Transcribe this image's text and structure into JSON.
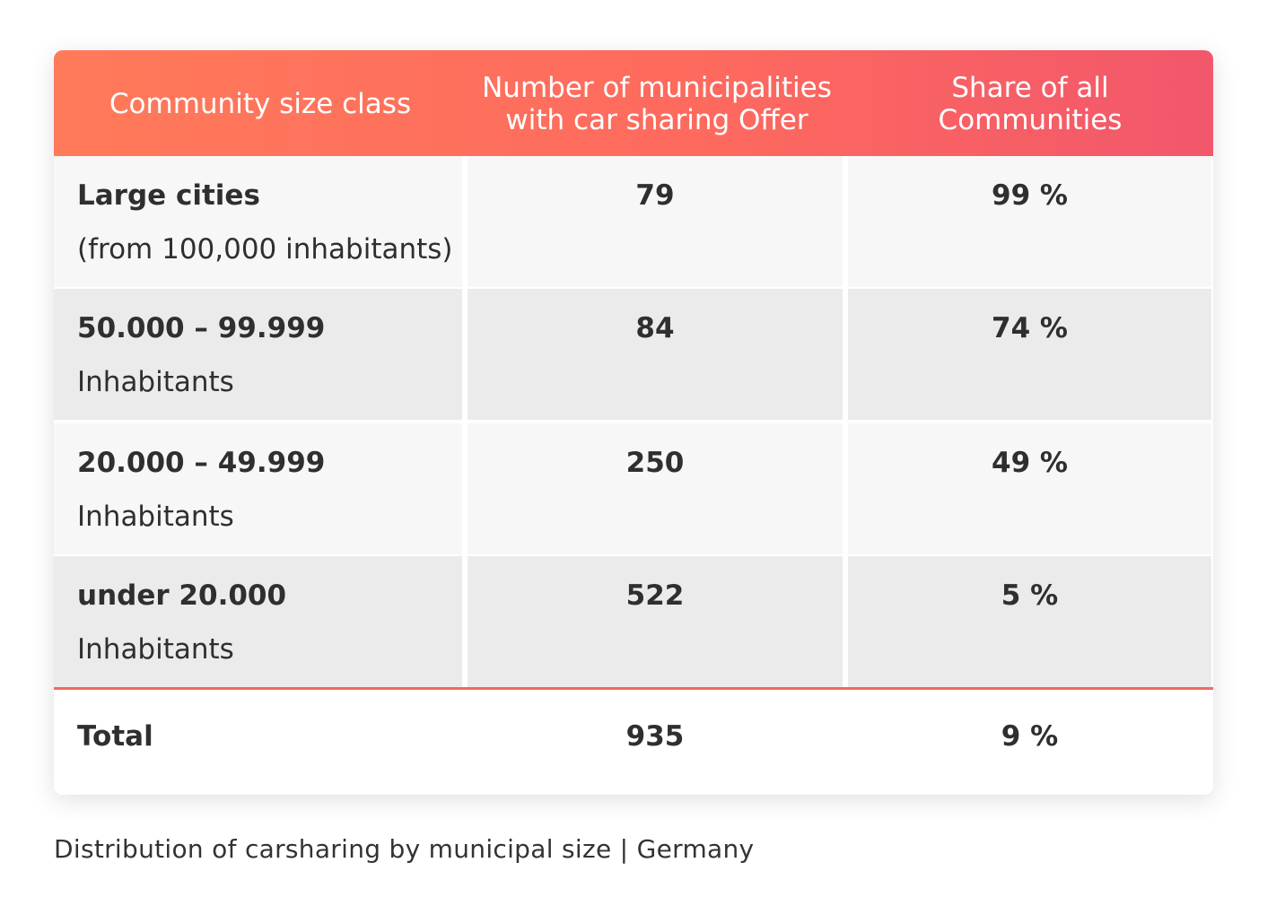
{
  "chart_data": {
    "type": "table",
    "columns": [
      "Community size class",
      "Number of municipalities with car sharing Offer",
      "Share of all Communities"
    ],
    "header_lines": [
      [
        "Community size class"
      ],
      [
        "Number of municipalities",
        "with car sharing Offer"
      ],
      [
        "Share of all",
        "Communities"
      ]
    ],
    "rows": [
      {
        "class": "Large cities",
        "class_note": "(from 100,000 inhabitants)",
        "municipalities": "79",
        "share": "99 %"
      },
      {
        "class": "50.000 – 99.999",
        "class_note": "Inhabitants",
        "municipalities": "84",
        "share": "74 %"
      },
      {
        "class": "20.000 – 49.999",
        "class_note": "Inhabitants",
        "municipalities": "250",
        "share": "49 %"
      },
      {
        "class": "under 20.000",
        "class_note": "Inhabitants",
        "municipalities": "522",
        "share": "5 %"
      }
    ],
    "total": {
      "class": "Total",
      "municipalities": "935",
      "share": "9 %"
    },
    "caption": "Distribution of carsharing by municipal size | Germany"
  },
  "colors": {
    "header_gradient_start": "#ff7a5a",
    "header_gradient_end": "#f2576b",
    "row_light": "#f7f7f7",
    "row_dark": "#ebebeb",
    "total_separator": "#f06a5e"
  }
}
